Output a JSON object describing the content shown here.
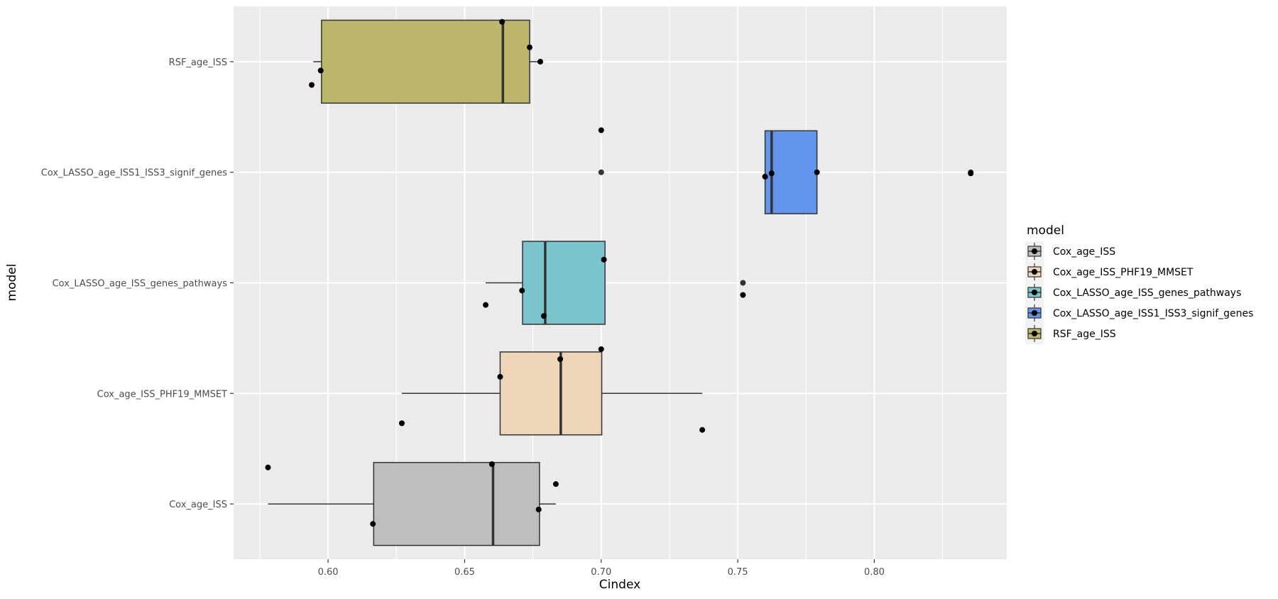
{
  "chart_data": {
    "type": "boxplot",
    "orientation": "horizontal",
    "title": "",
    "xlabel": "Cindex",
    "ylabel": "model",
    "xlim": [
      0.5654,
      0.8485
    ],
    "xticks": [
      0.6,
      0.65,
      0.7,
      0.75,
      0.8
    ],
    "xtick_labels": [
      "0.60",
      "0.65",
      "0.70",
      "0.75",
      "0.80"
    ],
    "grid": true,
    "legend": {
      "title": "model",
      "placement": "right"
    },
    "categories": [
      "Cox_age_ISS",
      "Cox_age_ISS_PHF19_MMSET",
      "Cox_LASSO_age_ISS_genes_pathways",
      "Cox_LASSO_age_ISS1_ISS3_signif_genes",
      "RSF_age_ISS"
    ],
    "series": [
      {
        "name": "Cox_age_ISS",
        "color": "#BEBEBE",
        "whisker_low": 0.578,
        "q1": 0.6167,
        "median": 0.6604,
        "q3": 0.6774,
        "whisker_high": 0.6834,
        "outliers": [],
        "points": [
          {
            "x": 0.578,
            "jitter": 0.33
          },
          {
            "x": 0.66,
            "jitter": 0.36
          },
          {
            "x": 0.6834,
            "jitter": 0.18
          },
          {
            "x": 0.6771,
            "jitter": -0.05
          },
          {
            "x": 0.6164,
            "jitter": -0.18
          }
        ]
      },
      {
        "name": "Cox_age_ISS_PHF19_MMSET",
        "color": "#EED5B7",
        "whisker_low": 0.627,
        "q1": 0.663,
        "median": 0.6852,
        "q3": 0.7002,
        "whisker_high": 0.737,
        "outliers": [],
        "points": [
          {
            "x": 0.7,
            "jitter": 0.4
          },
          {
            "x": 0.685,
            "jitter": 0.31
          },
          {
            "x": 0.663,
            "jitter": 0.15
          },
          {
            "x": 0.627,
            "jitter": -0.27
          },
          {
            "x": 0.737,
            "jitter": -0.33
          }
        ]
      },
      {
        "name": "Cox_LASSO_age_ISS_genes_pathways",
        "color": "#7AC5CD",
        "whisker_low": 0.6577,
        "q1": 0.6712,
        "median": 0.6795,
        "q3": 0.7014,
        "whisker_high": 0.7014,
        "outliers": [
          0.7519
        ],
        "points": [
          {
            "x": 0.701,
            "jitter": 0.21
          },
          {
            "x": 0.671,
            "jitter": -0.07
          },
          {
            "x": 0.6577,
            "jitter": -0.2
          },
          {
            "x": 0.679,
            "jitter": -0.3
          },
          {
            "x": 0.7519,
            "jitter": -0.11
          }
        ]
      },
      {
        "name": "Cox_LASSO_age_ISS1_ISS3_signif_genes",
        "color": "#6495ED",
        "whisker_low": 0.76,
        "q1": 0.76,
        "median": 0.7624,
        "q3": 0.779,
        "whisker_high": 0.779,
        "outliers": [
          0.7,
          0.8353
        ],
        "points": [
          {
            "x": 0.7,
            "jitter": 0.38
          },
          {
            "x": 0.76,
            "jitter": -0.04
          },
          {
            "x": 0.7624,
            "jitter": -0.01
          },
          {
            "x": 0.779,
            "jitter": 0.0
          },
          {
            "x": 0.8353,
            "jitter": -0.01
          }
        ]
      },
      {
        "name": "RSF_age_ISS",
        "color": "#BDB76B",
        "whisker_low": 0.5946,
        "q1": 0.5976,
        "median": 0.664,
        "q3": 0.6738,
        "whisker_high": 0.6778,
        "outliers": [],
        "points": [
          {
            "x": 0.6637,
            "jitter": 0.36
          },
          {
            "x": 0.6738,
            "jitter": 0.13
          },
          {
            "x": 0.6777,
            "jitter": 0.0
          },
          {
            "x": 0.5973,
            "jitter": -0.08
          },
          {
            "x": 0.594,
            "jitter": -0.21
          }
        ]
      }
    ]
  }
}
